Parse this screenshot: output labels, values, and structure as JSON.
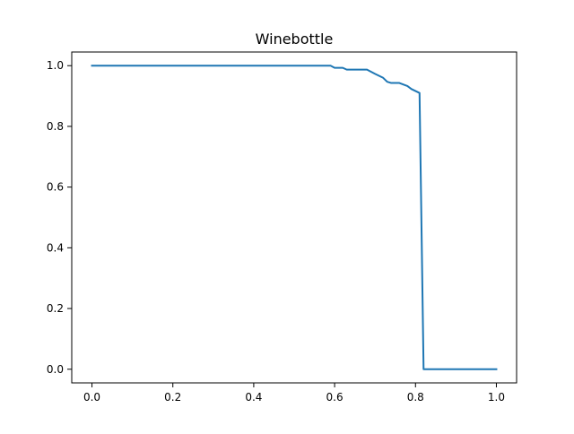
{
  "chart_data": {
    "type": "line",
    "title": "Winebottle",
    "xlabel": "",
    "ylabel": "",
    "xlim": [
      -0.05,
      1.05
    ],
    "ylim": [
      -0.045,
      1.045
    ],
    "xticks": [
      "0.0",
      "0.2",
      "0.4",
      "0.6",
      "0.8",
      "1.0"
    ],
    "yticks": [
      "0.0",
      "0.2",
      "0.4",
      "0.6",
      "0.8",
      "1.0"
    ],
    "grid": false,
    "legend": "none",
    "series": [
      {
        "color": "#1f77b4",
        "x": [
          0.0,
          0.59,
          0.6,
          0.62,
          0.63,
          0.68,
          0.7,
          0.72,
          0.73,
          0.74,
          0.76,
          0.78,
          0.79,
          0.81,
          0.82,
          0.85,
          0.9,
          0.95,
          1.0
        ],
        "y": [
          1.0,
          1.0,
          0.993,
          0.993,
          0.987,
          0.987,
          0.973,
          0.96,
          0.947,
          0.943,
          0.943,
          0.933,
          0.923,
          0.91,
          0.0,
          0.0,
          0.0,
          0.0,
          0.0
        ]
      }
    ]
  }
}
